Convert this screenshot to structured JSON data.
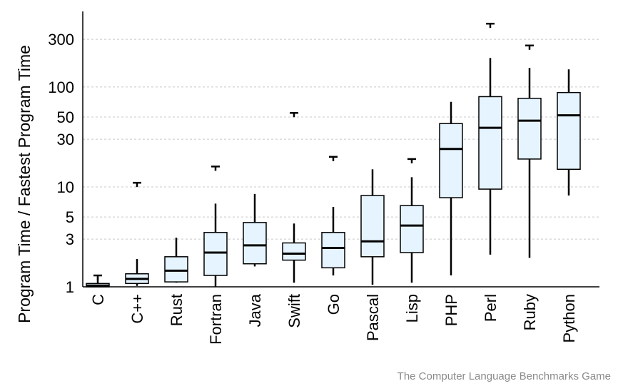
{
  "chart_data": {
    "type": "box",
    "ylabel": "Program Time / Fastest Program Time",
    "yscale": "log",
    "ylim": [
      1,
      500
    ],
    "yticks": [
      1,
      3,
      5,
      10,
      30,
      50,
      100,
      300
    ],
    "grid": "horizontal-dashed",
    "box_fill": "#e6f4ff",
    "stroke_color": "#000000",
    "grid_color": "#c8c8c8",
    "credit": "The Computer Language Benchmarks Game",
    "categories": [
      "C",
      "C++",
      "Rust",
      "Fortran",
      "Java",
      "Swift",
      "Go",
      "Pascal",
      "Lisp",
      "PHP",
      "Perl",
      "Ruby",
      "Python"
    ],
    "boxes": [
      {
        "label": "C",
        "whisker_low": 1.0,
        "q1": 1.0,
        "median": 1.03,
        "q3": 1.08,
        "whisker_high": 1.25,
        "outliers": [
          1.3
        ]
      },
      {
        "label": "C++",
        "whisker_low": 1.02,
        "q1": 1.08,
        "median": 1.2,
        "q3": 1.35,
        "whisker_high": 1.9,
        "outliers": [
          11
        ]
      },
      {
        "label": "Rust",
        "whisker_low": 1.1,
        "q1": 1.12,
        "median": 1.45,
        "q3": 2.0,
        "whisker_high": 3.1,
        "outliers": []
      },
      {
        "label": "Fortran",
        "whisker_low": 1.0,
        "q1": 1.3,
        "median": 2.2,
        "q3": 3.5,
        "whisker_high": 6.8,
        "outliers": [
          16
        ]
      },
      {
        "label": "Java",
        "whisker_low": 1.6,
        "q1": 1.7,
        "median": 2.6,
        "q3": 4.4,
        "whisker_high": 8.5,
        "outliers": []
      },
      {
        "label": "Swift",
        "whisker_low": 1.1,
        "q1": 1.85,
        "median": 2.15,
        "q3": 2.75,
        "whisker_high": 4.3,
        "outliers": [
          55
        ]
      },
      {
        "label": "Go",
        "whisker_low": 1.3,
        "q1": 1.55,
        "median": 2.45,
        "q3": 3.5,
        "whisker_high": 6.3,
        "outliers": [
          20
        ]
      },
      {
        "label": "Pascal",
        "whisker_low": 1.05,
        "q1": 2.0,
        "median": 2.85,
        "q3": 8.2,
        "whisker_high": 15,
        "outliers": []
      },
      {
        "label": "Lisp",
        "whisker_low": 1.1,
        "q1": 2.2,
        "median": 4.1,
        "q3": 6.5,
        "whisker_high": 12.5,
        "outliers": [
          19
        ]
      },
      {
        "label": "PHP",
        "whisker_low": 1.3,
        "q1": 7.8,
        "median": 24,
        "q3": 43,
        "whisker_high": 71,
        "outliers": []
      },
      {
        "label": "Perl",
        "whisker_low": 2.1,
        "q1": 9.5,
        "median": 39,
        "q3": 80,
        "whisker_high": 195,
        "outliers": [
          430
        ]
      },
      {
        "label": "Ruby",
        "whisker_low": 1.95,
        "q1": 19,
        "median": 46,
        "q3": 77,
        "whisker_high": 155,
        "outliers": [
          260
        ]
      },
      {
        "label": "Python",
        "whisker_low": 8.2,
        "q1": 15,
        "median": 52,
        "q3": 88,
        "whisker_high": 150,
        "outliers": []
      }
    ]
  }
}
